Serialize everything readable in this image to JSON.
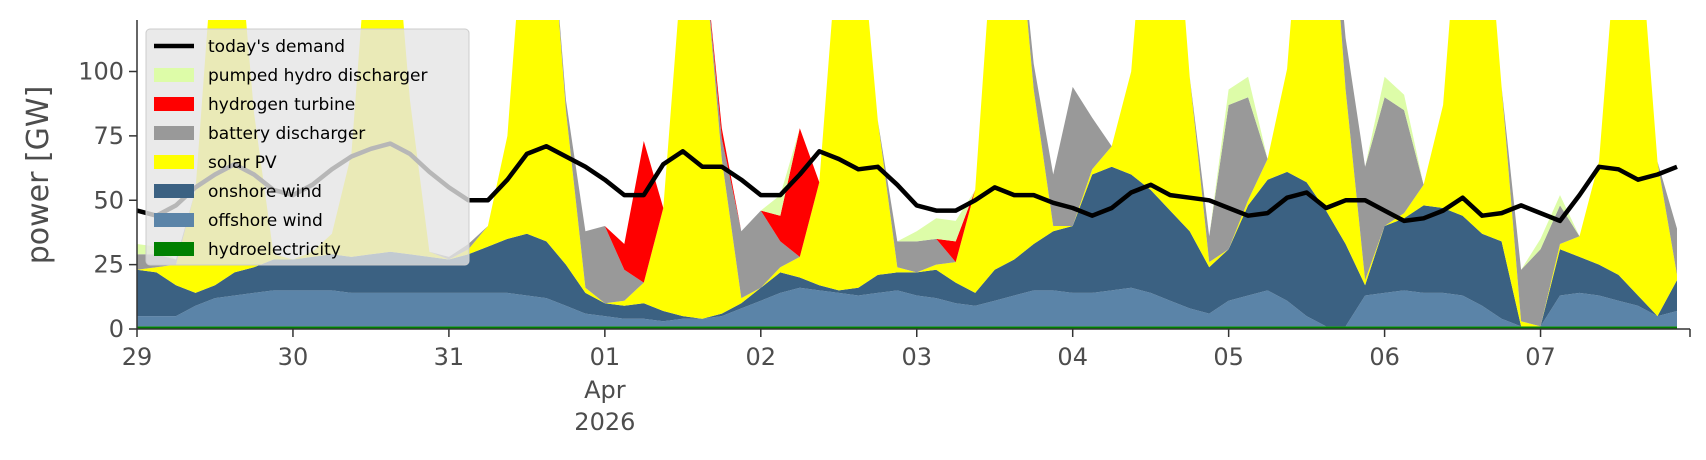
{
  "chart_data": {
    "type": "area",
    "title": "",
    "xlabel": "",
    "ylabel": "power [GW]",
    "ylim": [
      0,
      120
    ],
    "yticks": [
      0,
      25,
      50,
      75,
      100
    ],
    "xlim": [
      "2026-03-29T00:00",
      "2026-04-07T23:00"
    ],
    "xticks": [
      {
        "date": "2026-03-29",
        "label": "29",
        "sub": ""
      },
      {
        "date": "2026-03-30",
        "label": "30",
        "sub": ""
      },
      {
        "date": "2026-03-31",
        "label": "31",
        "sub": ""
      },
      {
        "date": "2026-04-01",
        "label": "01",
        "sub": "Apr\n2026"
      },
      {
        "date": "2026-04-02",
        "label": "02",
        "sub": ""
      },
      {
        "date": "2026-04-03",
        "label": "03",
        "sub": ""
      },
      {
        "date": "2026-04-04",
        "label": "04",
        "sub": ""
      },
      {
        "date": "2026-04-05",
        "label": "05",
        "sub": ""
      },
      {
        "date": "2026-04-06",
        "label": "06",
        "sub": ""
      },
      {
        "date": "2026-04-07",
        "label": "07",
        "sub": ""
      }
    ],
    "grid": false,
    "legend_position": "top-left",
    "x": [
      "2026-03-29T00:00",
      "2026-03-29T03:00",
      "2026-03-29T06:00",
      "2026-03-29T09:00",
      "2026-03-29T12:00",
      "2026-03-29T15:00",
      "2026-03-29T18:00",
      "2026-03-29T21:00",
      "2026-03-30T00:00",
      "2026-03-30T03:00",
      "2026-03-30T06:00",
      "2026-03-30T09:00",
      "2026-03-30T12:00",
      "2026-03-30T15:00",
      "2026-03-30T18:00",
      "2026-03-30T21:00",
      "2026-03-31T00:00",
      "2026-03-31T03:00",
      "2026-03-31T06:00",
      "2026-03-31T09:00",
      "2026-03-31T12:00",
      "2026-03-31T15:00",
      "2026-03-31T18:00",
      "2026-03-31T21:00",
      "2026-04-01T00:00",
      "2026-04-01T03:00",
      "2026-04-01T06:00",
      "2026-04-01T09:00",
      "2026-04-01T12:00",
      "2026-04-01T15:00",
      "2026-04-01T18:00",
      "2026-04-01T21:00",
      "2026-04-02T00:00",
      "2026-04-02T03:00",
      "2026-04-02T06:00",
      "2026-04-02T09:00",
      "2026-04-02T12:00",
      "2026-04-02T15:00",
      "2026-04-02T18:00",
      "2026-04-02T21:00",
      "2026-04-03T00:00",
      "2026-04-03T03:00",
      "2026-04-03T06:00",
      "2026-04-03T09:00",
      "2026-04-03T12:00",
      "2026-04-03T15:00",
      "2026-04-03T18:00",
      "2026-04-03T21:00",
      "2026-04-04T00:00",
      "2026-04-04T03:00",
      "2026-04-04T06:00",
      "2026-04-04T09:00",
      "2026-04-04T12:00",
      "2026-04-04T15:00",
      "2026-04-04T18:00",
      "2026-04-04T21:00",
      "2026-04-05T00:00",
      "2026-04-05T03:00",
      "2026-04-05T06:00",
      "2026-04-05T09:00",
      "2026-04-05T12:00",
      "2026-04-05T15:00",
      "2026-04-05T18:00",
      "2026-04-05T21:00",
      "2026-04-06T00:00",
      "2026-04-06T03:00",
      "2026-04-06T06:00",
      "2026-04-06T09:00",
      "2026-04-06T12:00",
      "2026-04-06T15:00",
      "2026-04-06T18:00",
      "2026-04-06T21:00",
      "2026-04-07T00:00",
      "2026-04-07T03:00",
      "2026-04-07T06:00",
      "2026-04-07T09:00",
      "2026-04-07T12:00",
      "2026-04-07T15:00",
      "2026-04-07T18:00",
      "2026-04-07T21:00"
    ],
    "series": [
      {
        "name": "hydroelectricity",
        "color": "#008000",
        "values": [
          1,
          1,
          1,
          1,
          1,
          1,
          1,
          1,
          1,
          1,
          1,
          1,
          1,
          1,
          1,
          1,
          1,
          1,
          1,
          1,
          1,
          1,
          1,
          1,
          1,
          1,
          1,
          1,
          1,
          1,
          1,
          1,
          1,
          1,
          1,
          1,
          1,
          1,
          1,
          1,
          1,
          1,
          1,
          1,
          1,
          1,
          1,
          1,
          1,
          1,
          1,
          1,
          1,
          1,
          1,
          1,
          1,
          1,
          1,
          1,
          1,
          1,
          1,
          1,
          1,
          1,
          1,
          1,
          1,
          1,
          1,
          1,
          1,
          1,
          1,
          1,
          1,
          1,
          1,
          1
        ]
      },
      {
        "name": "offshore wind",
        "color": "#5b84a8",
        "values": [
          4,
          4,
          4,
          8,
          11,
          12,
          13,
          14,
          14,
          14,
          14,
          13,
          13,
          13,
          13,
          13,
          13,
          13,
          13,
          13,
          12,
          11,
          8,
          5,
          4,
          3,
          3,
          2,
          3,
          3,
          4,
          7,
          10,
          13,
          15,
          14,
          13,
          12,
          13,
          14,
          12,
          11,
          9,
          8,
          10,
          12,
          14,
          14,
          13,
          13,
          14,
          15,
          13,
          10,
          7,
          5,
          10,
          12,
          14,
          10,
          4,
          0,
          0,
          12,
          13,
          14,
          13,
          13,
          12,
          8,
          3,
          0,
          0,
          12,
          13,
          12,
          10,
          8,
          4,
          6
        ]
      },
      {
        "name": "onshore wind",
        "color": "#3b6182",
        "values": [
          18,
          17,
          12,
          5,
          5,
          9,
          10,
          12,
          12,
          13,
          14,
          14,
          15,
          16,
          15,
          14,
          13,
          15,
          18,
          21,
          24,
          22,
          16,
          8,
          5,
          5,
          6,
          4,
          1,
          0,
          1,
          2,
          5,
          8,
          4,
          2,
          1,
          3,
          7,
          7,
          9,
          11,
          8,
          5,
          12,
          14,
          18,
          23,
          26,
          46,
          48,
          44,
          40,
          35,
          30,
          18,
          20,
          35,
          43,
          50,
          52,
          45,
          32,
          4,
          26,
          28,
          34,
          33,
          31,
          28,
          30,
          0,
          0,
          18,
          14,
          12,
          10,
          4,
          0,
          12
        ]
      },
      {
        "name": "solar PV",
        "color": "#ffff00",
        "values": [
          0,
          2,
          8,
          40,
          140,
          150,
          60,
          2,
          0,
          2,
          8,
          40,
          140,
          150,
          60,
          2,
          0,
          2,
          8,
          40,
          140,
          150,
          60,
          2,
          0,
          2,
          8,
          40,
          140,
          150,
          60,
          2,
          0,
          2,
          8,
          40,
          140,
          150,
          60,
          2,
          0,
          2,
          8,
          40,
          140,
          150,
          60,
          2,
          0,
          2,
          8,
          40,
          140,
          150,
          60,
          2,
          0,
          2,
          8,
          40,
          140,
          150,
          60,
          2,
          0,
          2,
          8,
          40,
          140,
          150,
          60,
          2,
          0,
          2,
          8,
          40,
          140,
          150,
          60,
          2
        ]
      },
      {
        "name": "battery discharger",
        "color": "#999999",
        "values": [
          6,
          5,
          2,
          0,
          0,
          0,
          0,
          0,
          0,
          0,
          0,
          0,
          0,
          0,
          0,
          0,
          1,
          2,
          0,
          0,
          0,
          0,
          4,
          22,
          30,
          12,
          0,
          0,
          0,
          0,
          8,
          26,
          30,
          10,
          0,
          0,
          0,
          0,
          0,
          10,
          12,
          10,
          0,
          0,
          0,
          0,
          10,
          20,
          54,
          20,
          0,
          0,
          0,
          0,
          0,
          10,
          56,
          40,
          0,
          0,
          0,
          0,
          20,
          44,
          50,
          40,
          0,
          0,
          0,
          0,
          0,
          20,
          30,
          15,
          0,
          0,
          0,
          0,
          0,
          18
        ]
      },
      {
        "name": "hydrogen turbine",
        "color": "#ff0000",
        "values": [
          0,
          0,
          0,
          0,
          0,
          0,
          0,
          0,
          0,
          0,
          0,
          0,
          0,
          0,
          0,
          0,
          0,
          0,
          0,
          0,
          0,
          0,
          0,
          0,
          0,
          10,
          55,
          0,
          0,
          0,
          4,
          0,
          0,
          10,
          50,
          0,
          0,
          0,
          0,
          0,
          0,
          0,
          8,
          0,
          0,
          0,
          0,
          0,
          0,
          0,
          0,
          0,
          0,
          0,
          0,
          0,
          0,
          0,
          0,
          0,
          0,
          0,
          0,
          0,
          0,
          0,
          0,
          0,
          0,
          0,
          0,
          0,
          0,
          0,
          0,
          0,
          0,
          0,
          0,
          0
        ]
      },
      {
        "name": "pumped hydro discharger",
        "color": "#ddfca8",
        "values": [
          4,
          3,
          0,
          0,
          0,
          0,
          0,
          0,
          0,
          0,
          0,
          0,
          0,
          0,
          0,
          0,
          0,
          0,
          0,
          0,
          0,
          0,
          0,
          0,
          0,
          0,
          0,
          0,
          0,
          0,
          0,
          0,
          0,
          8,
          0,
          0,
          0,
          0,
          0,
          0,
          4,
          8,
          8,
          0,
          0,
          0,
          0,
          0,
          0,
          0,
          0,
          0,
          0,
          0,
          0,
          0,
          6,
          8,
          0,
          0,
          0,
          0,
          0,
          0,
          8,
          6,
          0,
          0,
          0,
          0,
          0,
          0,
          4,
          4,
          0,
          0,
          0,
          0,
          0,
          0
        ]
      }
    ],
    "demand": {
      "name": "today's demand",
      "color": "#000000",
      "values": [
        46,
        44,
        48,
        55,
        60,
        64,
        60,
        54,
        52,
        56,
        62,
        67,
        70,
        72,
        68,
        61,
        55,
        50,
        50,
        58,
        68,
        71,
        67,
        63,
        58,
        52,
        52,
        64,
        69,
        63,
        63,
        58,
        52,
        52,
        60,
        69,
        66,
        62,
        63,
        56,
        48,
        46,
        46,
        50,
        55,
        52,
        52,
        49,
        47,
        44,
        47,
        53,
        56,
        52,
        51,
        50,
        47,
        44,
        45,
        51,
        53,
        47,
        50,
        50,
        46,
        42,
        43,
        46,
        51,
        44,
        45,
        48,
        45,
        42,
        52,
        63,
        62,
        58,
        60,
        63
      ]
    }
  }
}
